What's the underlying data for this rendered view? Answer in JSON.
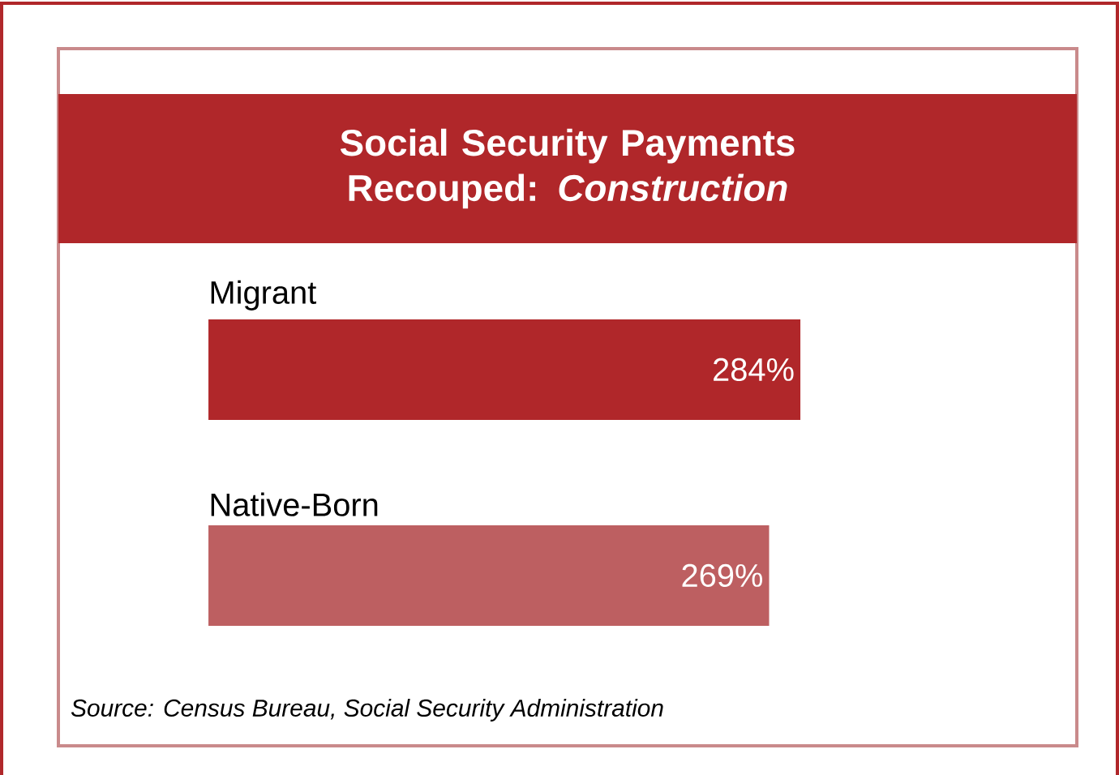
{
  "chart_data": {
    "type": "bar",
    "orientation": "horizontal",
    "title": "Social Security Payments Recouped: *Construction*",
    "categories": [
      "Migrant",
      "Native-Born"
    ],
    "values": [
      284,
      269
    ],
    "colors": [
      "#b0272a",
      "#bd5f61"
    ],
    "value_labels": [
      "284%",
      "269%"
    ],
    "annotations": [
      "Source: Census Bureau, Social Security Administration"
    ]
  }
}
